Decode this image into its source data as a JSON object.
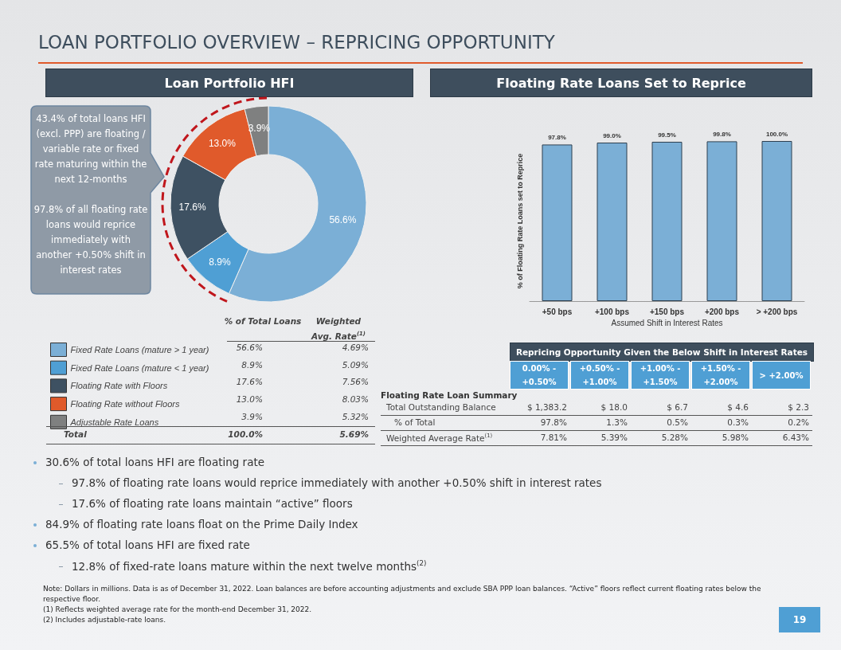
{
  "chart_data": [
    {
      "type": "donut",
      "title": "LOAN PORTFOLIO OVERVIEW – REPRICING OPPORTUNITY",
      "subtitle": "Loan Portfolio HFI",
      "categories": [
        "Fixed Rate Loans (mature > 1 year)",
        "Fixed Rate Loans (mature < 1 year)",
        "Floating Rate with Floors",
        "Floating Rate without Floors",
        "Adjustable Rate Loans"
      ],
      "values": [
        56.6,
        8.9,
        17.6,
        13.0,
        3.9
      ],
      "value_labels": [
        "56.6%",
        "8.9%",
        "17.6%",
        "13.0%",
        "3.9%"
      ],
      "colors": [
        "#7bafd6",
        "#4f9fd4",
        "#3e5162",
        "#e05a2b",
        "#7f8080"
      ],
      "legend": "bottom left",
      "annotations": [
        "43.4% of total loans HFI (excl. PPP) are floating / variable rate or fixed rate maturing within the next 12-months",
        "97.8% of all floating rate loans would reprice immediately with another +0.50% shift in interest rates",
        "% of Total Loans",
        "Weighted Avg. Rate$^{(1)}$",
        "4.69%",
        "5.09%",
        "7.56%",
        "8.03%",
        "5.32%",
        "Total",
        "100.0%",
        "5.69%"
      ]
    },
    {
      "type": "bar",
      "title": "Floating Rate Loans Set to Reprice",
      "xlabel": "Assumed Shift in Interest Rates",
      "ylabel": "% of Floating Rate Loans set to Reprice",
      "categories": [
        "+50 bps",
        "+100 bps",
        "+150 bps",
        "+200 bps",
        "> +200 bps"
      ],
      "values": [
        97.8,
        99.0,
        99.5,
        99.8,
        100.0
      ],
      "value_labels": [
        "97.8%",
        "99.0%",
        "99.5%",
        "99.8%",
        "100.0%"
      ],
      "color": "#7bafd6",
      "ylim": [
        0,
        100
      ],
      "tick_labels": "x",
      "annotations": [
        "Repricing Opportunity Given the Below Shift in Interest Rates",
        "0.00% - +0.50%",
        "+0.50% - +1.00%",
        "+1.00% - +1.50%",
        "+1.50% - +2.00%",
        "> +2.00%",
        "Floating Rate Loan Summary",
        "Total Outstanding Balance",
        "$ 1,383.2",
        "$ 18.0",
        "$ 6.7",
        "$ 4.6",
        "$ 2.3",
        "% of Total",
        "97.8%",
        "1.3%",
        "0.5%",
        "0.3%",
        "0.2%",
        "Weighted Average Rate$^{(1)}$",
        "7.81%",
        "5.39%",
        "5.28%",
        "5.98%",
        "6.43%",
        "30.6% of total loans HFI are floating rate",
        "97.8% of floating rate loans would reprice immediately with another +0.50% shift in interest rates",
        "17.6% of floating rate loans maintain “active” floors",
        "84.9% of floating rate loans float on the Prime Daily Index",
        "65.5% of total loans HFI are fixed rate",
        "12.8% of fixed-rate loans mature within the next twelve months$^{(2)}$",
        "Note: Dollars in millions. Data is as of December 31, 2022. Loan balances are before accounting adjustments and exclude SBA PPP loan balances. “Active” floors reflect current floating rates below the respective floor.",
        "(1) Reflects weighted average rate for the month-end December 31, 2022.",
        "(2) Includes adjustable-rate loans.",
        "19"
      ]
    }
  ]
}
